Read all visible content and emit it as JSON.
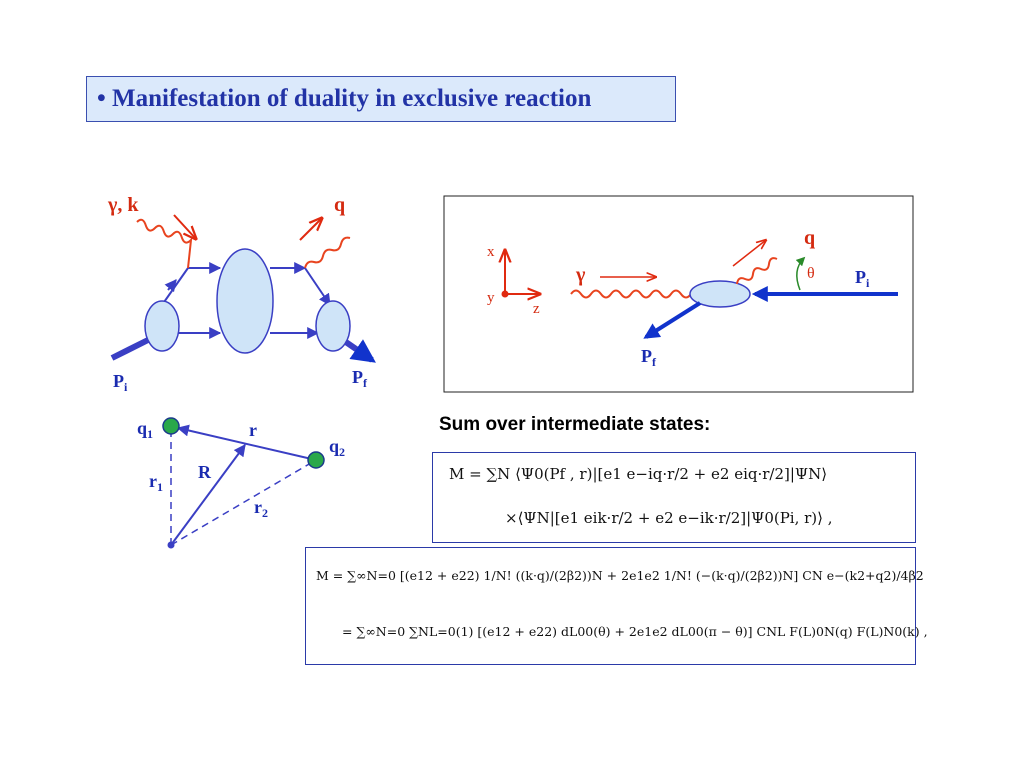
{
  "title": "• Manifestation of duality in exclusive reaction",
  "diagram_left": {
    "photon_label": "γ, k",
    "outgoing_label": "q",
    "initial_label": "P",
    "initial_sub": "i",
    "final_label": "P",
    "final_sub": "f"
  },
  "diagram_right": {
    "axis_x": "x",
    "axis_y": "y",
    "axis_z": "z",
    "gamma_label": "γ",
    "q_label": "q",
    "theta_label": "θ",
    "pi_label": "P",
    "pi_sub": "i",
    "pf_label": "P",
    "pf_sub": "f"
  },
  "diagram_triangle": {
    "q1_label": "q",
    "q1_sub": "1",
    "q2_label": "q",
    "q2_sub": "2",
    "r_label": "r",
    "R_label": "R",
    "r1_label": "r",
    "r1_sub": "1",
    "r2_label": "r",
    "r2_sub": "2"
  },
  "colors": {
    "title_blue": "#2233a6",
    "box_fill": "#dbe9fb",
    "line_blue": "#3a3fc4",
    "photon_red": "#e8441f",
    "label_red": "#d42a10",
    "theta_green": "#2a8a2a",
    "dot_green": "#2aa84a"
  },
  "sum_label": "Sum over intermediate states:",
  "eq1": {
    "line1": "M  =  ∑N ⟨Ψ0(Pf , r)|[e1 e−iq·r/2 + e2 eiq·r/2]|ΨN⟩",
    "line2": "×⟨ΨN|[e1 eik·r/2 + e2 e−ik·r/2]|Ψ0(Pi, r)⟩ ,"
  },
  "eq2": {
    "line1": "M  =  ∑∞N=0 [(e12 + e22) 1/N! ((k·q)/(2β2))N + 2e1e2 1/N! (−(k·q)/(2β2))N] CN e−(k2+q2)/4β2",
    "line2": "=  ∑∞N=0 ∑NL=0(1) [(e12 + e22) dL00(θ) + 2e1e2 dL00(π − θ)] CNL F(L)0N(q) F(L)N0(k) ,"
  }
}
